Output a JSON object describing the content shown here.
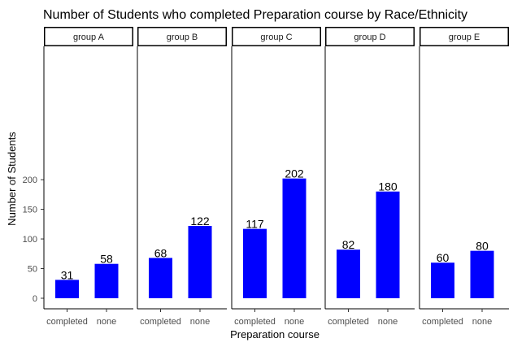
{
  "chart_data": {
    "type": "bar",
    "title": "Number of Students who completed Preparation course by Race/Ethnicity",
    "xlabel": "Preparation course",
    "ylabel": "Number of Students",
    "ylim": [
      0,
      210
    ],
    "yticks": [
      0,
      50,
      100,
      150,
      200
    ],
    "categories": [
      "completed",
      "none"
    ],
    "bar_color": "#0000ff",
    "grid": false,
    "facets": [
      {
        "name": "group A",
        "values": [
          31,
          58
        ]
      },
      {
        "name": "group B",
        "values": [
          68,
          122
        ]
      },
      {
        "name": "group C",
        "values": [
          117,
          202
        ]
      },
      {
        "name": "group D",
        "values": [
          82,
          180
        ]
      },
      {
        "name": "group E",
        "values": [
          60,
          80
        ]
      }
    ]
  }
}
